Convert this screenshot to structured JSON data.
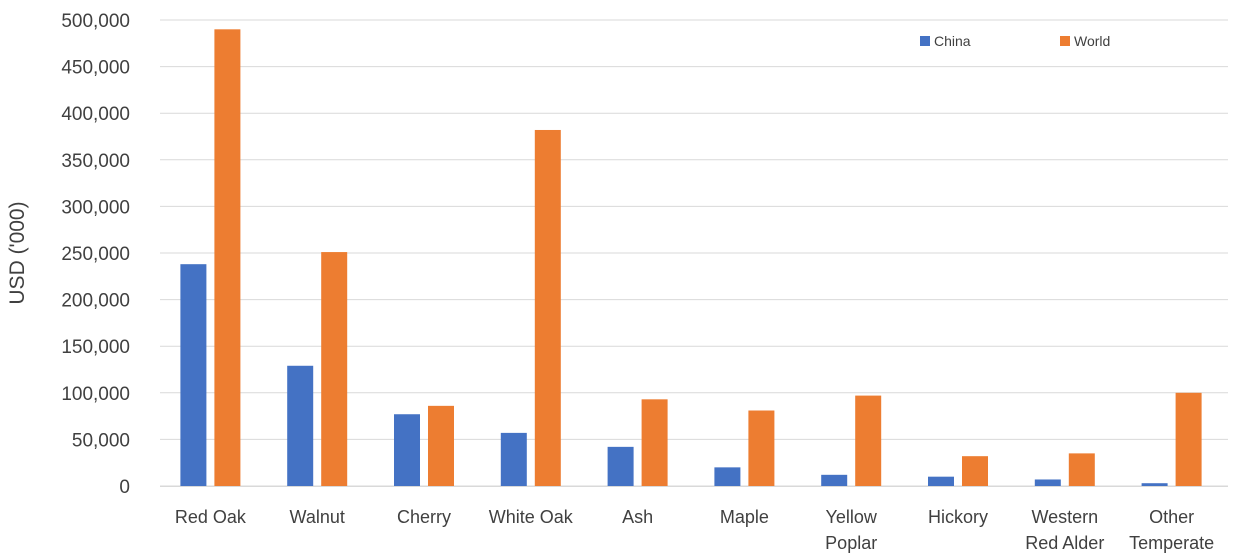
{
  "chart_data": {
    "type": "bar",
    "title": "",
    "xlabel": "",
    "ylabel": "USD ('000)",
    "ylim": [
      0,
      500000
    ],
    "yticks": [
      0,
      50000,
      100000,
      150000,
      200000,
      250000,
      300000,
      350000,
      400000,
      450000,
      500000
    ],
    "ytick_labels": [
      "0",
      "50,000",
      "100,000",
      "150,000",
      "200,000",
      "250,000",
      "300,000",
      "350,000",
      "400,000",
      "450,000",
      "500,000"
    ],
    "categories": [
      [
        "Red Oak"
      ],
      [
        "Walnut"
      ],
      [
        "Cherry"
      ],
      [
        "White Oak"
      ],
      [
        "Ash"
      ],
      [
        "Maple"
      ],
      [
        "Yellow",
        "Poplar"
      ],
      [
        "Hickory"
      ],
      [
        "Western",
        "Red Alder"
      ],
      [
        "Other",
        "Temperate"
      ]
    ],
    "series": [
      {
        "name": "China",
        "color": "#4472C4",
        "values": [
          238000,
          129000,
          77000,
          57000,
          42000,
          20000,
          12000,
          10000,
          7000,
          3000
        ]
      },
      {
        "name": "World",
        "color": "#ED7D31",
        "values": [
          490000,
          251000,
          86000,
          382000,
          93000,
          81000,
          97000,
          32000,
          35000,
          100000
        ]
      }
    ],
    "grid": true,
    "legend_position": "top-right"
  }
}
